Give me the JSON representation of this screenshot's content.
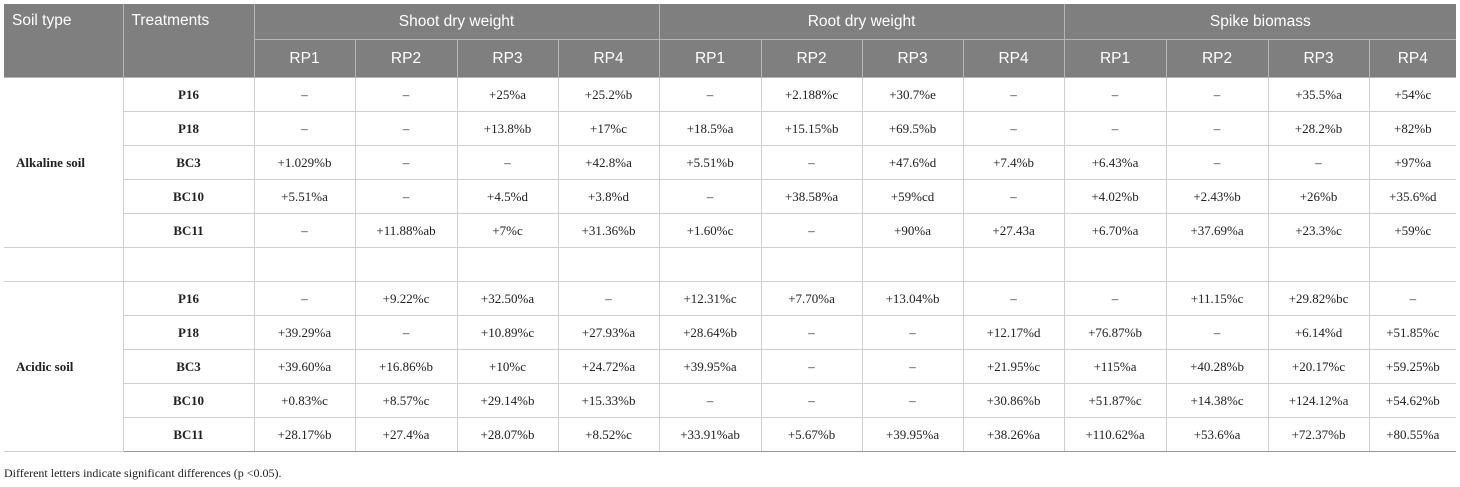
{
  "headers": {
    "soil_type": "Soil type",
    "treatments": "Treatments",
    "groups": [
      "Shoot dry weight",
      "Root dry weight",
      "Spike biomass"
    ],
    "subcols": [
      "RP1",
      "RP2",
      "RP3",
      "RP4",
      "RP1",
      "RP2",
      "RP3",
      "RP4",
      "RP1",
      "RP2",
      "RP3",
      "RP4"
    ]
  },
  "sections": [
    {
      "soil": "Alkaline soil",
      "rows": [
        {
          "treatment": "P16",
          "values": [
            "–",
            "–",
            "+25%a",
            "+25.2%b",
            "–",
            "+2.188%c",
            "+30.7%e",
            "–",
            "–",
            "–",
            "+35.5%a",
            "+54%c"
          ]
        },
        {
          "treatment": "P18",
          "values": [
            "–",
            "–",
            "+13.8%b",
            "+17%c",
            "+18.5%a",
            "+15.15%b",
            "+69.5%b",
            "–",
            "–",
            "–",
            "+28.2%b",
            "+82%b"
          ]
        },
        {
          "treatment": "BC3",
          "values": [
            "+1.029%b",
            "–",
            "–",
            "+42.8%a",
            "+5.51%b",
            "–",
            "+47.6%d",
            "+7.4%b",
            "+6.43%a",
            "–",
            "–",
            "+97%a"
          ]
        },
        {
          "treatment": "BC10",
          "values": [
            "+5.51%a",
            "–",
            "+4.5%d",
            "+3.8%d",
            "–",
            "+38.58%a",
            "+59%cd",
            "–",
            "+4.02%b",
            "+2.43%b",
            "+26%b",
            "+35.6%d"
          ]
        },
        {
          "treatment": "BC11",
          "values": [
            "–",
            "+11.88%ab",
            "+7%c",
            "+31.36%b",
            "+1.60%c",
            "–",
            "+90%a",
            "+27.43a",
            "+6.70%a",
            "+37.69%a",
            "+23.3%c",
            "+59%c"
          ]
        }
      ]
    },
    {
      "soil": "Acidic soil",
      "rows": [
        {
          "treatment": "P16",
          "values": [
            "–",
            "+9.22%c",
            "+32.50%a",
            "–",
            "+12.31%c",
            "+7.70%a",
            "+13.04%b",
            "–",
            "–",
            "+11.15%c",
            "+29.82%bc",
            "–"
          ]
        },
        {
          "treatment": "P18",
          "values": [
            "+39.29%a",
            "–",
            "+10.89%c",
            "+27.93%a",
            "+28.64%b",
            "–",
            "–",
            "+12.17%d",
            "+76.87%b",
            "–",
            "+6.14%d",
            "+51.85%c"
          ]
        },
        {
          "treatment": "BC3",
          "values": [
            "+39.60%a",
            "+16.86%b",
            "+10%c",
            "+24.72%a",
            "+39.95%a",
            "–",
            "–",
            "+21.95%c",
            "+115%a",
            "+40.28%b",
            "+20.17%c",
            "+59.25%b"
          ]
        },
        {
          "treatment": "BC10",
          "values": [
            "+0.83%c",
            "+8.57%c",
            "+29.14%b",
            "+15.33%b",
            "–",
            "–",
            "–",
            "+30.86%b",
            "+51.87%c",
            "+14.38%c",
            "+124.12%a",
            "+54.62%b"
          ]
        },
        {
          "treatment": "BC11",
          "values": [
            "+28.17%b",
            "+27.4%a",
            "+28.07%b",
            "+8.52%c",
            "+33.91%ab",
            "+5.67%b",
            "+39.95%a",
            "+38.26%a",
            "+110.62%a",
            "+53.6%a",
            "+72.37%b",
            "+80.55%a"
          ]
        }
      ]
    }
  ],
  "footnote": "Different letters indicate significant differences (p <0.05)."
}
